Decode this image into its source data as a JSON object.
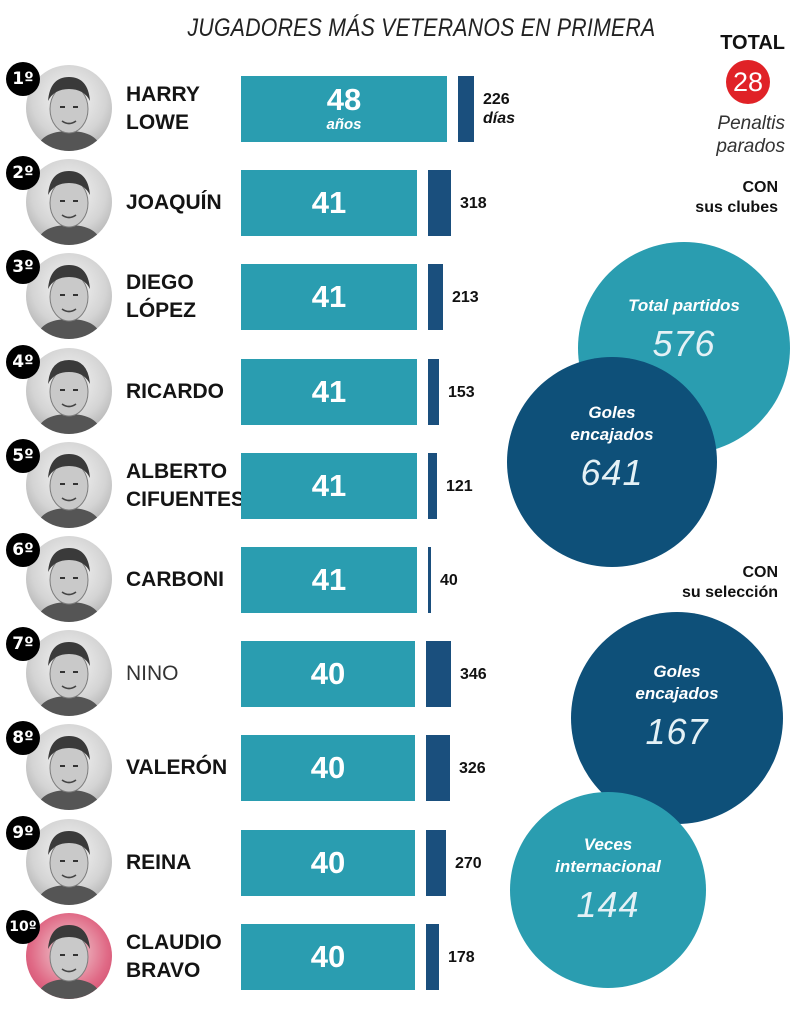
{
  "title": "JUGADORES MÁS VETERANOS EN PRIMERA",
  "chart_data": {
    "type": "bar",
    "title": "JUGADORES MÁS VETERANOS EN PRIMERA",
    "categories": [
      "HARRY LOWE",
      "JOAQUÍN",
      "DIEGO LÓPEZ",
      "RICARDO",
      "ALBERTO CIFUENTES",
      "CARBONI",
      "NINO",
      "VALERÓN",
      "REINA",
      "CLAUDIO BRAVO"
    ],
    "series": [
      {
        "name": "años",
        "values": [
          48,
          41,
          41,
          41,
          41,
          41,
          40,
          40,
          40,
          40
        ]
      },
      {
        "name": "días",
        "values": [
          226,
          318,
          213,
          153,
          121,
          40,
          346,
          326,
          270,
          178
        ]
      }
    ],
    "players": [
      {
        "rank": "1º",
        "name": "HARRY\nLOWE",
        "years": 48,
        "years_unit": "años",
        "days": 226,
        "days_unit": "días",
        "style": "bold",
        "photo": "default"
      },
      {
        "rank": "2º",
        "name": "JOAQUÍN",
        "years": 41,
        "days": 318,
        "style": "bold",
        "photo": "default"
      },
      {
        "rank": "3º",
        "name": "DIEGO\nLÓPEZ",
        "years": 41,
        "days": 213,
        "style": "bold",
        "photo": "default"
      },
      {
        "rank": "4º",
        "name": "RICARDO",
        "years": 41,
        "days": 153,
        "style": "bold",
        "photo": "default"
      },
      {
        "rank": "5º",
        "name": "ALBERTO\nCIFUENTES",
        "years": 41,
        "days": 121,
        "style": "bold",
        "photo": "default"
      },
      {
        "rank": "6º",
        "name": "CARBONI",
        "years": 41,
        "days": 40,
        "style": "bold",
        "photo": "default"
      },
      {
        "rank": "7º",
        "name": "NINO",
        "years": 40,
        "days": 346,
        "style": "light",
        "photo": "default"
      },
      {
        "rank": "8º",
        "name": "VALERÓN",
        "years": 40,
        "days": 326,
        "style": "bold",
        "photo": "default"
      },
      {
        "rank": "9º",
        "name": "REINA",
        "years": 40,
        "days": 270,
        "style": "bold",
        "photo": "default"
      },
      {
        "rank": "10º",
        "name": "CLAUDIO\nBRAVO",
        "years": 40,
        "days": 178,
        "style": "bold",
        "photo": "pink"
      }
    ]
  },
  "stats": {
    "total_label": "TOTAL",
    "penalties_value": "28",
    "penalties_label": "Penaltis\nparados",
    "clubs_label": "CON\nsus clubes",
    "clubs_matches_label": "Total partidos",
    "clubs_matches_value": "576",
    "clubs_goals_label": "Goles\nencajados",
    "clubs_goals_value": "641",
    "national_label": "CON\nsu selección",
    "national_goals_label": "Goles\nencajados",
    "national_goals_value": "167",
    "national_caps_label": "Veces\ninternacional",
    "national_caps_value": "144"
  },
  "colors": {
    "years_bar": "#2a9db0",
    "days_bar": "#1a4f7d",
    "bubble_teal": "#2a9db0",
    "bubble_navy": "#0e5079",
    "penalties_circle": "#e02227"
  },
  "icons": {
    "player_photo": "player-portrait-icon"
  }
}
